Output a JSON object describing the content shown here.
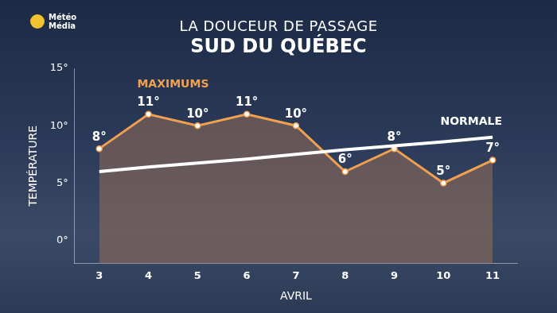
{
  "logo": [
    "Météo",
    "Média"
  ],
  "chart_data": {
    "type": "line",
    "title": "LA DOUCEUR DE PASSAGE",
    "subtitle": "SUD DU QUÉBEC",
    "x_label": "AVRIL",
    "y_label": "TEMPÉRATURE",
    "categories": [
      "3",
      "4",
      "5",
      "6",
      "7",
      "8",
      "9",
      "10",
      "11"
    ],
    "series": [
      {
        "name": "MAXIMUMS",
        "color": "#f0a050",
        "marker": "circle",
        "line_style": "solid",
        "data_labels": true,
        "values": [
          8,
          11,
          10,
          11,
          10,
          6,
          8,
          5,
          7
        ],
        "value_labels": [
          "8°",
          "11°",
          "10°",
          "11°",
          "10°",
          "6°",
          "8°",
          "5°",
          "7°"
        ]
      },
      {
        "name": "NORMALE",
        "color": "#ffffff",
        "marker": "none",
        "line_style": "solid",
        "values": [
          6,
          6.4,
          6.75,
          7.1,
          7.5,
          7.9,
          8.25,
          8.6,
          9
        ]
      }
    ],
    "ylim": [
      -2,
      15
    ],
    "yticks": [
      {
        "value": 0,
        "label": "0°"
      },
      {
        "value": 5,
        "label": "5°"
      },
      {
        "value": 10,
        "label": "10°"
      },
      {
        "value": 15,
        "label": "15°"
      }
    ],
    "grid": false
  }
}
